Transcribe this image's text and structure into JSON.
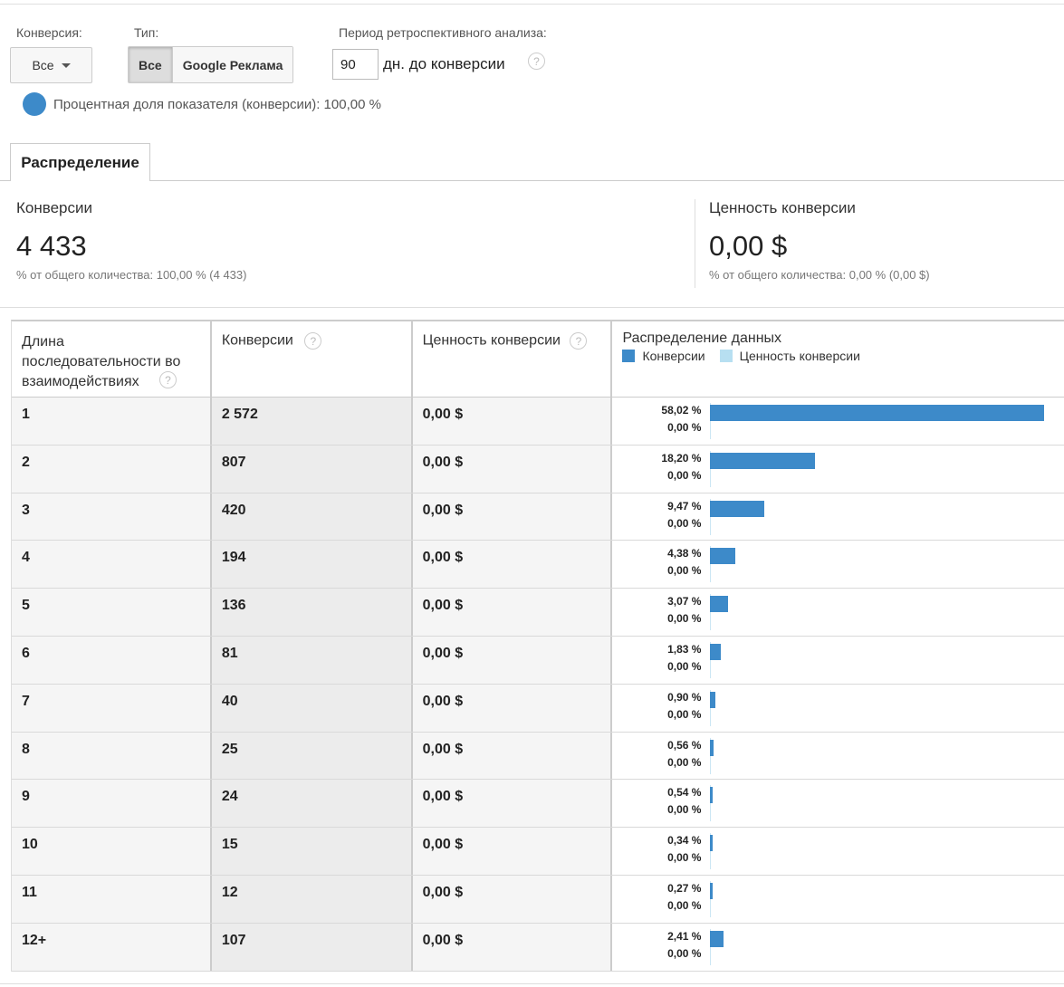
{
  "controls": {
    "conversion_label": "Конверсия:",
    "conversion_value": "Все",
    "type_label": "Тип:",
    "type_options": [
      "Все",
      "Google Реклама"
    ],
    "lookback_label": "Период ретроспективного анализа:",
    "lookback_value": "90",
    "lookback_suffix": "дн. до конверсии",
    "metric_share": "Процентная доля показателя (конверсии): 100,00 %",
    "metric_color": "#3d8ac9"
  },
  "tabs": {
    "distribution": "Распределение"
  },
  "summary": {
    "conversions_label": "Конверсии",
    "conversions_value": "4 433",
    "conversions_sub": "% от общего количества: 100,00 % (4 433)",
    "value_label": "Ценность конверсии",
    "value_value": "0,00 $",
    "value_sub": "% от общего количества: 0,00 % (0,00 $)"
  },
  "table": {
    "headers": {
      "length": "Длина последовательности во взаимодействиях",
      "conversions": "Конверсии",
      "value": "Ценность конверсии",
      "distribution": "Распределение данных",
      "legend_conversions": "Конверсии",
      "legend_value": "Ценность конверсии"
    },
    "colors": {
      "conversions": "#3d8ac9",
      "value": "#b7dff1"
    },
    "rows": [
      {
        "length": "1",
        "conversions": "2 572",
        "value": "0,00 $",
        "conv_pct": "58,02 %",
        "val_pct": "0,00 %",
        "share": 58.02
      },
      {
        "length": "2",
        "conversions": "807",
        "value": "0,00 $",
        "conv_pct": "18,20 %",
        "val_pct": "0,00 %",
        "share": 18.2
      },
      {
        "length": "3",
        "conversions": "420",
        "value": "0,00 $",
        "conv_pct": "9,47 %",
        "val_pct": "0,00 %",
        "share": 9.47
      },
      {
        "length": "4",
        "conversions": "194",
        "value": "0,00 $",
        "conv_pct": "4,38 %",
        "val_pct": "0,00 %",
        "share": 4.38
      },
      {
        "length": "5",
        "conversions": "136",
        "value": "0,00 $",
        "conv_pct": "3,07 %",
        "val_pct": "0,00 %",
        "share": 3.07
      },
      {
        "length": "6",
        "conversions": "81",
        "value": "0,00 $",
        "conv_pct": "1,83 %",
        "val_pct": "0,00 %",
        "share": 1.83
      },
      {
        "length": "7",
        "conversions": "40",
        "value": "0,00 $",
        "conv_pct": "0,90 %",
        "val_pct": "0,00 %",
        "share": 0.9
      },
      {
        "length": "8",
        "conversions": "25",
        "value": "0,00 $",
        "conv_pct": "0,56 %",
        "val_pct": "0,00 %",
        "share": 0.56
      },
      {
        "length": "9",
        "conversions": "24",
        "value": "0,00 $",
        "conv_pct": "0,54 %",
        "val_pct": "0,00 %",
        "share": 0.54
      },
      {
        "length": "10",
        "conversions": "15",
        "value": "0,00 $",
        "conv_pct": "0,34 %",
        "val_pct": "0,00 %",
        "share": 0.34
      },
      {
        "length": "11",
        "conversions": "12",
        "value": "0,00 $",
        "conv_pct": "0,27 %",
        "val_pct": "0,00 %",
        "share": 0.27
      },
      {
        "length": "12+",
        "conversions": "107",
        "value": "0,00 $",
        "conv_pct": "2,41 %",
        "val_pct": "0,00 %",
        "share": 2.41
      }
    ]
  }
}
